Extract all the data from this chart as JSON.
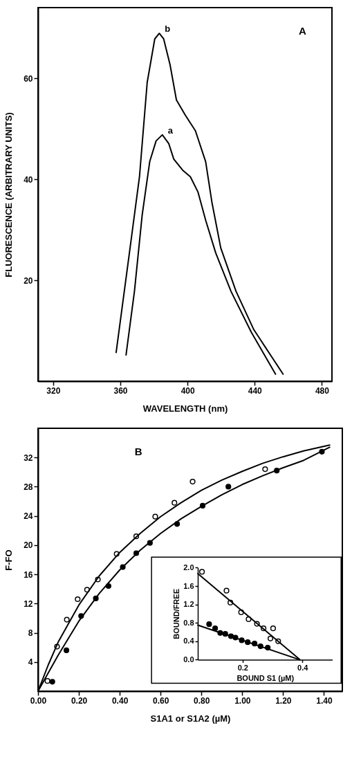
{
  "chart_data": [
    {
      "type": "line",
      "xlabel": "WAVELENGTH (nm)",
      "ylabel": "FLUORESCENCE (ARBITRARY UNITS)",
      "xlim": [
        311,
        486
      ],
      "ylim": [
        0,
        74
      ],
      "xticks": [
        320,
        360,
        400,
        440,
        480
      ],
      "yticks": [
        20,
        40,
        60
      ],
      "annotations": [
        "A"
      ],
      "grid": false,
      "line_style": "solid",
      "series": [
        {
          "name": "b",
          "color": "#000000",
          "x": [
            357.5,
            365.4,
            371.4,
            376,
            380.5,
            383.2,
            385.8,
            389.6,
            393.4,
            398.7,
            404.7,
            410.8,
            414.5,
            419.8,
            428.9,
            439.5,
            456.9
          ],
          "values": [
            5.7,
            25.4,
            40.5,
            59.2,
            67.8,
            68.9,
            67.8,
            62.7,
            55.7,
            52.7,
            49.6,
            43.5,
            35.5,
            26.4,
            17.8,
            10.2,
            1.4
          ]
        },
        {
          "name": "a",
          "color": "#000000",
          "x": [
            363.4,
            368.4,
            373,
            377.5,
            381.3,
            385,
            388.8,
            391.8,
            397.1,
            401.7,
            406.2,
            410.8,
            416.8,
            425.9,
            438,
            452.4
          ],
          "values": [
            5.2,
            17.8,
            32.9,
            43.5,
            47.6,
            48.8,
            47.1,
            44,
            41.8,
            40.5,
            37.5,
            31.9,
            25.4,
            17.8,
            9.7,
            1.4
          ]
        }
      ]
    },
    {
      "type": "scatter",
      "xlabel": "S1A1 or S1A2 (µM)",
      "ylabel": "F-FO",
      "xlim": [
        0,
        1.49
      ],
      "ylim": [
        0,
        36
      ],
      "xticks": [
        {
          "value": 0,
          "label": "0.00"
        },
        {
          "value": 0.2,
          "label": "0.20"
        },
        {
          "value": 0.4,
          "label": "0.40"
        },
        {
          "value": 0.6,
          "label": "0.60"
        },
        {
          "value": 0.8,
          "label": "0.80"
        },
        {
          "value": 1,
          "label": "1.00"
        },
        {
          "value": 1.2,
          "label": "1.20"
        },
        {
          "value": 1.4,
          "label": "1.40"
        }
      ],
      "yticks": [
        4,
        8,
        12,
        16,
        20,
        24,
        28,
        32
      ],
      "annotations": [
        "B"
      ],
      "grid": false,
      "marker": "circle",
      "series": [
        {
          "color": "#ffffff",
          "x": [
            0.046,
            0.093,
            0.141,
            0.194,
            0.24,
            0.293,
            0.385,
            0.481,
            0.574,
            0.668,
            0.757,
            1.112
          ],
          "values": [
            1.4,
            6.1,
            9.8,
            12.6,
            13.9,
            15.3,
            18.8,
            21.2,
            23.9,
            25.8,
            28.7,
            30.4
          ]
        },
        {
          "color": "#000000",
          "x": [
            0.07,
            0.139,
            0.211,
            0.283,
            0.345,
            0.415,
            0.481,
            0.548,
            0.681,
            0.806,
            0.932,
            1.169,
            1.39
          ],
          "values": [
            1.3,
            5.6,
            10.3,
            12.7,
            14.4,
            17.0,
            18.9,
            20.3,
            22.9,
            25.4,
            28.0,
            30.2,
            32.8
          ]
        },
        {
          "type": "line",
          "marker": "none",
          "color": "#000000",
          "x": [
            0,
            0.05,
            0.1,
            0.2,
            0.3,
            0.4,
            0.5,
            0.6,
            0.7,
            0.8,
            0.9,
            1.0,
            1.1,
            1.2,
            1.3,
            1.428
          ],
          "values": [
            0,
            3.6,
            6.8,
            11.8,
            15.8,
            19.0,
            21.6,
            23.9,
            25.8,
            27.5,
            28.9,
            30.1,
            31.2,
            32.1,
            32.9,
            33.7
          ]
        },
        {
          "type": "line",
          "marker": "none",
          "color": "#000000",
          "x": [
            0,
            0.05,
            0.1,
            0.2,
            0.3,
            0.4,
            0.5,
            0.6,
            0.7,
            0.8,
            0.9,
            1.0,
            1.1,
            1.2,
            1.3,
            1.428
          ],
          "values": [
            0,
            2.5,
            5.0,
            9.6,
            13.4,
            16.6,
            19.3,
            21.6,
            23.6,
            25.3,
            26.9,
            28.3,
            29.5,
            30.6,
            31.6,
            33.4
          ]
        }
      ]
    },
    {
      "type": "scatter",
      "xlabel": "BOUND S1 (µM)",
      "ylabel": "BOUND/FREE",
      "xlim": [
        0.05,
        0.5
      ],
      "ylim": [
        0,
        2.0
      ],
      "xticks": [
        0.2,
        0.4
      ],
      "yticks": [
        {
          "value": 0,
          "label": "0.0"
        },
        {
          "value": 0.4,
          "label": "0.4"
        },
        {
          "value": 0.8,
          "label": "0.8"
        },
        {
          "value": 1.2,
          "label": "1.2"
        },
        {
          "value": 1.6,
          "label": "1.6"
        },
        {
          "value": 2,
          "label": "2.0"
        }
      ],
      "grid": false,
      "marker": "circle",
      "series": [
        {
          "color": "#ffffff",
          "x": [
            0.064,
            0.146,
            0.159,
            0.195,
            0.22,
            0.248,
            0.27,
            0.302,
            0.293,
            0.319
          ],
          "values": [
            1.91,
            1.5,
            1.24,
            1.03,
            0.88,
            0.78,
            0.68,
            0.68,
            0.46,
            0.4
          ]
        },
        {
          "color": "#000000",
          "x": [
            0.088,
            0.108,
            0.125,
            0.142,
            0.161,
            0.176,
            0.197,
            0.217,
            0.24,
            0.26,
            0.284
          ],
          "values": [
            0.77,
            0.68,
            0.58,
            0.56,
            0.51,
            0.48,
            0.42,
            0.38,
            0.35,
            0.29,
            0.26
          ]
        },
        {
          "type": "line",
          "marker": "none",
          "color": "#000000",
          "x": [
            0.05,
            0.392
          ],
          "values": [
            1.87,
            0
          ]
        },
        {
          "type": "line",
          "marker": "none",
          "color": "#000000",
          "x": [
            0.05,
            0.39
          ],
          "values": [
            0.75,
            0
          ]
        }
      ]
    }
  ]
}
